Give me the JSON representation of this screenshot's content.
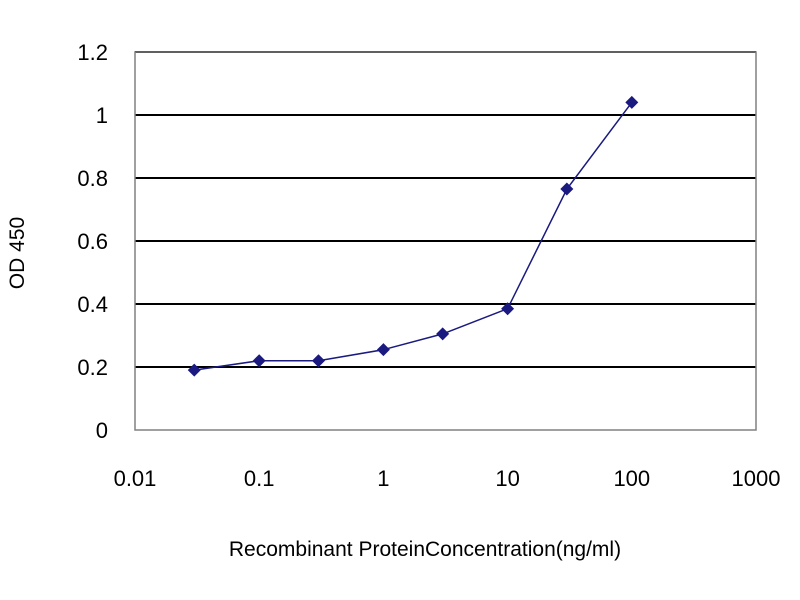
{
  "chart_data": {
    "type": "line",
    "title": "",
    "xlabel": "Recombinant ProteinConcentration(ng/ml)",
    "ylabel": "OD 450",
    "xscale": "log",
    "xlim": [
      0.01,
      1000
    ],
    "ylim": [
      0,
      1.2
    ],
    "grid": "horizontal",
    "legend": "none",
    "x_tick_labels": [
      "0.01",
      "0.1",
      "1",
      "10",
      "100",
      "1000"
    ],
    "x_ticks": [
      0.01,
      0.1,
      1,
      10,
      100,
      1000
    ],
    "y_tick_labels": [
      "0",
      "0.2",
      "0.4",
      "0.6",
      "0.8",
      "1",
      "1.2"
    ],
    "y_ticks": [
      0,
      0.2,
      0.4,
      0.6,
      0.8,
      1,
      1.2
    ],
    "series": [
      {
        "x": [
          0.03,
          0.1,
          0.3,
          1,
          3,
          10,
          30,
          100
        ],
        "y": [
          0.19,
          0.22,
          0.22,
          0.255,
          0.305,
          0.385,
          0.765,
          1.04
        ],
        "color": "#1a1a80",
        "marker": "diamond"
      }
    ],
    "colors": {
      "gridline": "#000000",
      "plot_background": "#ffffff",
      "series": "#1a1a80"
    }
  }
}
